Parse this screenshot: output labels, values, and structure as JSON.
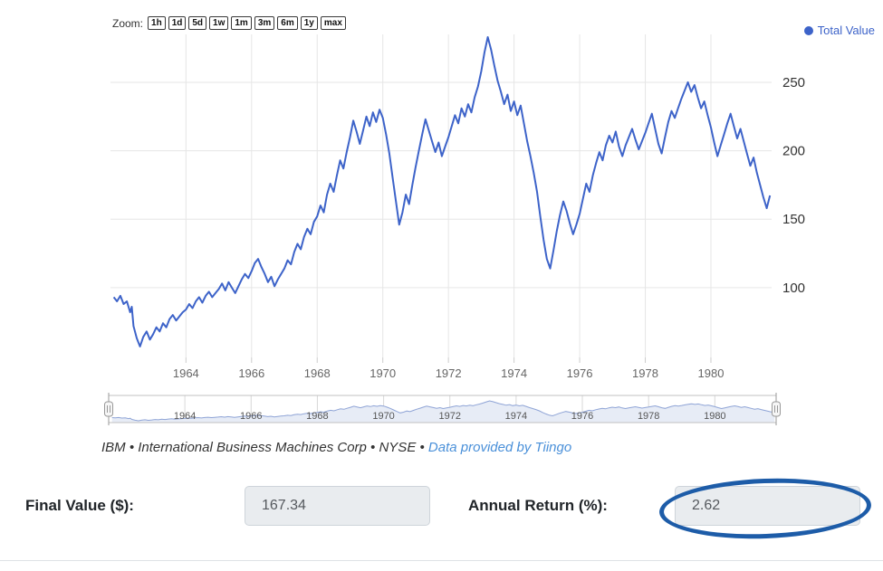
{
  "colors": {
    "line": "#3d63c9",
    "legend_text": "#3d63c9",
    "grid": "#e6e6e6",
    "tick": "#cccccc",
    "navigator_fill": "#e7ecf6",
    "navigator_line": "#8fa4d6",
    "navigator_outline": "#c0c0c0",
    "handle_stroke": "#999999",
    "handle_fill": "#f6f6f6",
    "annotation": "#1d5ca8",
    "caption_link": "#4a90d9"
  },
  "chart": {
    "zoom_label": "Zoom:",
    "zoom_buttons": [
      "1h",
      "1d",
      "5d",
      "1w",
      "1m",
      "3m",
      "6m",
      "1y",
      "max"
    ],
    "legend": {
      "label": "Total Value"
    },
    "caption": {
      "text": "IBM • International Business Machines Corp • NYSE • ",
      "link_text": "Data provided by Tiingo"
    }
  },
  "chart_data": {
    "type": "line",
    "title": "",
    "xlabel": "",
    "ylabel": "",
    "legend": [
      "Total Value"
    ],
    "legend_position": "top-right",
    "grid": true,
    "navigator": true,
    "x_ticks": [
      1964,
      1966,
      1968,
      1970,
      1972,
      1974,
      1976,
      1978,
      1980
    ],
    "y_ticks": [
      100,
      150,
      200,
      250
    ],
    "x_range": [
      1961.7,
      1981.85
    ],
    "y_range": [
      49,
      285
    ],
    "series": [
      {
        "name": "Total Value",
        "points": [
          [
            1961.8,
            93
          ],
          [
            1961.9,
            90
          ],
          [
            1962.0,
            94
          ],
          [
            1962.1,
            88
          ],
          [
            1962.2,
            90
          ],
          [
            1962.3,
            82
          ],
          [
            1962.35,
            86
          ],
          [
            1962.4,
            72
          ],
          [
            1962.5,
            63
          ],
          [
            1962.6,
            57
          ],
          [
            1962.7,
            64
          ],
          [
            1962.8,
            68
          ],
          [
            1962.9,
            62
          ],
          [
            1963.0,
            66
          ],
          [
            1963.1,
            71
          ],
          [
            1963.2,
            68
          ],
          [
            1963.3,
            74
          ],
          [
            1963.4,
            71
          ],
          [
            1963.5,
            77
          ],
          [
            1963.6,
            80
          ],
          [
            1963.7,
            76
          ],
          [
            1963.8,
            79
          ],
          [
            1963.9,
            82
          ],
          [
            1964.0,
            84
          ],
          [
            1964.1,
            88
          ],
          [
            1964.2,
            85
          ],
          [
            1964.3,
            90
          ],
          [
            1964.4,
            93
          ],
          [
            1964.5,
            89
          ],
          [
            1964.6,
            94
          ],
          [
            1964.7,
            97
          ],
          [
            1964.8,
            93
          ],
          [
            1964.9,
            96
          ],
          [
            1965.0,
            99
          ],
          [
            1965.1,
            103
          ],
          [
            1965.2,
            98
          ],
          [
            1965.3,
            104
          ],
          [
            1965.4,
            100
          ],
          [
            1965.5,
            96
          ],
          [
            1965.6,
            101
          ],
          [
            1965.7,
            106
          ],
          [
            1965.8,
            110
          ],
          [
            1965.9,
            107
          ],
          [
            1966.0,
            112
          ],
          [
            1966.1,
            118
          ],
          [
            1966.2,
            121
          ],
          [
            1966.3,
            115
          ],
          [
            1966.4,
            110
          ],
          [
            1966.5,
            104
          ],
          [
            1966.6,
            108
          ],
          [
            1966.7,
            101
          ],
          [
            1966.8,
            106
          ],
          [
            1966.9,
            110
          ],
          [
            1967.0,
            114
          ],
          [
            1967.1,
            120
          ],
          [
            1967.2,
            117
          ],
          [
            1967.3,
            126
          ],
          [
            1967.4,
            132
          ],
          [
            1967.5,
            128
          ],
          [
            1967.6,
            137
          ],
          [
            1967.7,
            143
          ],
          [
            1967.8,
            139
          ],
          [
            1967.9,
            148
          ],
          [
            1968.0,
            152
          ],
          [
            1968.1,
            160
          ],
          [
            1968.2,
            155
          ],
          [
            1968.3,
            168
          ],
          [
            1968.4,
            176
          ],
          [
            1968.5,
            170
          ],
          [
            1968.6,
            182
          ],
          [
            1968.7,
            193
          ],
          [
            1968.8,
            187
          ],
          [
            1968.9,
            199
          ],
          [
            1969.0,
            210
          ],
          [
            1969.1,
            222
          ],
          [
            1969.2,
            214
          ],
          [
            1969.3,
            205
          ],
          [
            1969.4,
            215
          ],
          [
            1969.5,
            225
          ],
          [
            1969.6,
            218
          ],
          [
            1969.7,
            228
          ],
          [
            1969.8,
            221
          ],
          [
            1969.9,
            230
          ],
          [
            1970.0,
            224
          ],
          [
            1970.1,
            212
          ],
          [
            1970.2,
            198
          ],
          [
            1970.3,
            180
          ],
          [
            1970.4,
            163
          ],
          [
            1970.5,
            146
          ],
          [
            1970.6,
            155
          ],
          [
            1970.7,
            168
          ],
          [
            1970.8,
            161
          ],
          [
            1970.9,
            175
          ],
          [
            1971.0,
            188
          ],
          [
            1971.1,
            200
          ],
          [
            1971.2,
            212
          ],
          [
            1971.3,
            223
          ],
          [
            1971.4,
            215
          ],
          [
            1971.5,
            207
          ],
          [
            1971.6,
            199
          ],
          [
            1971.7,
            206
          ],
          [
            1971.8,
            196
          ],
          [
            1971.9,
            203
          ],
          [
            1972.0,
            210
          ],
          [
            1972.1,
            218
          ],
          [
            1972.2,
            226
          ],
          [
            1972.3,
            220
          ],
          [
            1972.4,
            231
          ],
          [
            1972.5,
            225
          ],
          [
            1972.6,
            234
          ],
          [
            1972.7,
            228
          ],
          [
            1972.8,
            239
          ],
          [
            1972.9,
            247
          ],
          [
            1973.0,
            258
          ],
          [
            1973.1,
            272
          ],
          [
            1973.2,
            283
          ],
          [
            1973.3,
            274
          ],
          [
            1973.4,
            262
          ],
          [
            1973.5,
            251
          ],
          [
            1973.6,
            243
          ],
          [
            1973.7,
            234
          ],
          [
            1973.8,
            241
          ],
          [
            1973.9,
            229
          ],
          [
            1974.0,
            236
          ],
          [
            1974.1,
            226
          ],
          [
            1974.2,
            233
          ],
          [
            1974.3,
            220
          ],
          [
            1974.4,
            207
          ],
          [
            1974.5,
            196
          ],
          [
            1974.6,
            184
          ],
          [
            1974.7,
            170
          ],
          [
            1974.8,
            152
          ],
          [
            1974.9,
            135
          ],
          [
            1975.0,
            121
          ],
          [
            1975.1,
            114
          ],
          [
            1975.2,
            127
          ],
          [
            1975.3,
            141
          ],
          [
            1975.4,
            153
          ],
          [
            1975.5,
            163
          ],
          [
            1975.6,
            156
          ],
          [
            1975.7,
            147
          ],
          [
            1975.8,
            139
          ],
          [
            1975.9,
            146
          ],
          [
            1976.0,
            154
          ],
          [
            1976.1,
            165
          ],
          [
            1976.2,
            176
          ],
          [
            1976.3,
            170
          ],
          [
            1976.4,
            182
          ],
          [
            1976.5,
            191
          ],
          [
            1976.6,
            199
          ],
          [
            1976.7,
            193
          ],
          [
            1976.8,
            204
          ],
          [
            1976.9,
            211
          ],
          [
            1977.0,
            206
          ],
          [
            1977.1,
            214
          ],
          [
            1977.2,
            203
          ],
          [
            1977.3,
            196
          ],
          [
            1977.4,
            204
          ],
          [
            1977.5,
            210
          ],
          [
            1977.6,
            216
          ],
          [
            1977.7,
            208
          ],
          [
            1977.8,
            201
          ],
          [
            1977.9,
            207
          ],
          [
            1978.0,
            213
          ],
          [
            1978.1,
            220
          ],
          [
            1978.2,
            227
          ],
          [
            1978.3,
            216
          ],
          [
            1978.4,
            205
          ],
          [
            1978.5,
            198
          ],
          [
            1978.6,
            210
          ],
          [
            1978.7,
            221
          ],
          [
            1978.8,
            229
          ],
          [
            1978.9,
            224
          ],
          [
            1979.0,
            231
          ],
          [
            1979.1,
            238
          ],
          [
            1979.2,
            244
          ],
          [
            1979.3,
            250
          ],
          [
            1979.4,
            243
          ],
          [
            1979.5,
            248
          ],
          [
            1979.6,
            239
          ],
          [
            1979.7,
            231
          ],
          [
            1979.8,
            236
          ],
          [
            1979.9,
            226
          ],
          [
            1980.0,
            217
          ],
          [
            1980.1,
            206
          ],
          [
            1980.2,
            196
          ],
          [
            1980.3,
            204
          ],
          [
            1980.4,
            212
          ],
          [
            1980.5,
            220
          ],
          [
            1980.6,
            227
          ],
          [
            1980.7,
            218
          ],
          [
            1980.8,
            209
          ],
          [
            1980.9,
            216
          ],
          [
            1981.0,
            207
          ],
          [
            1981.1,
            198
          ],
          [
            1981.2,
            189
          ],
          [
            1981.3,
            195
          ],
          [
            1981.4,
            184
          ],
          [
            1981.5,
            175
          ],
          [
            1981.6,
            166
          ],
          [
            1981.7,
            158
          ],
          [
            1981.8,
            167.34
          ]
        ]
      }
    ]
  },
  "form": {
    "final_value": {
      "label": "Final Value ($):",
      "value": "167.34"
    },
    "annual_return": {
      "label": "Annual Return (%):",
      "value": "2.62"
    }
  }
}
